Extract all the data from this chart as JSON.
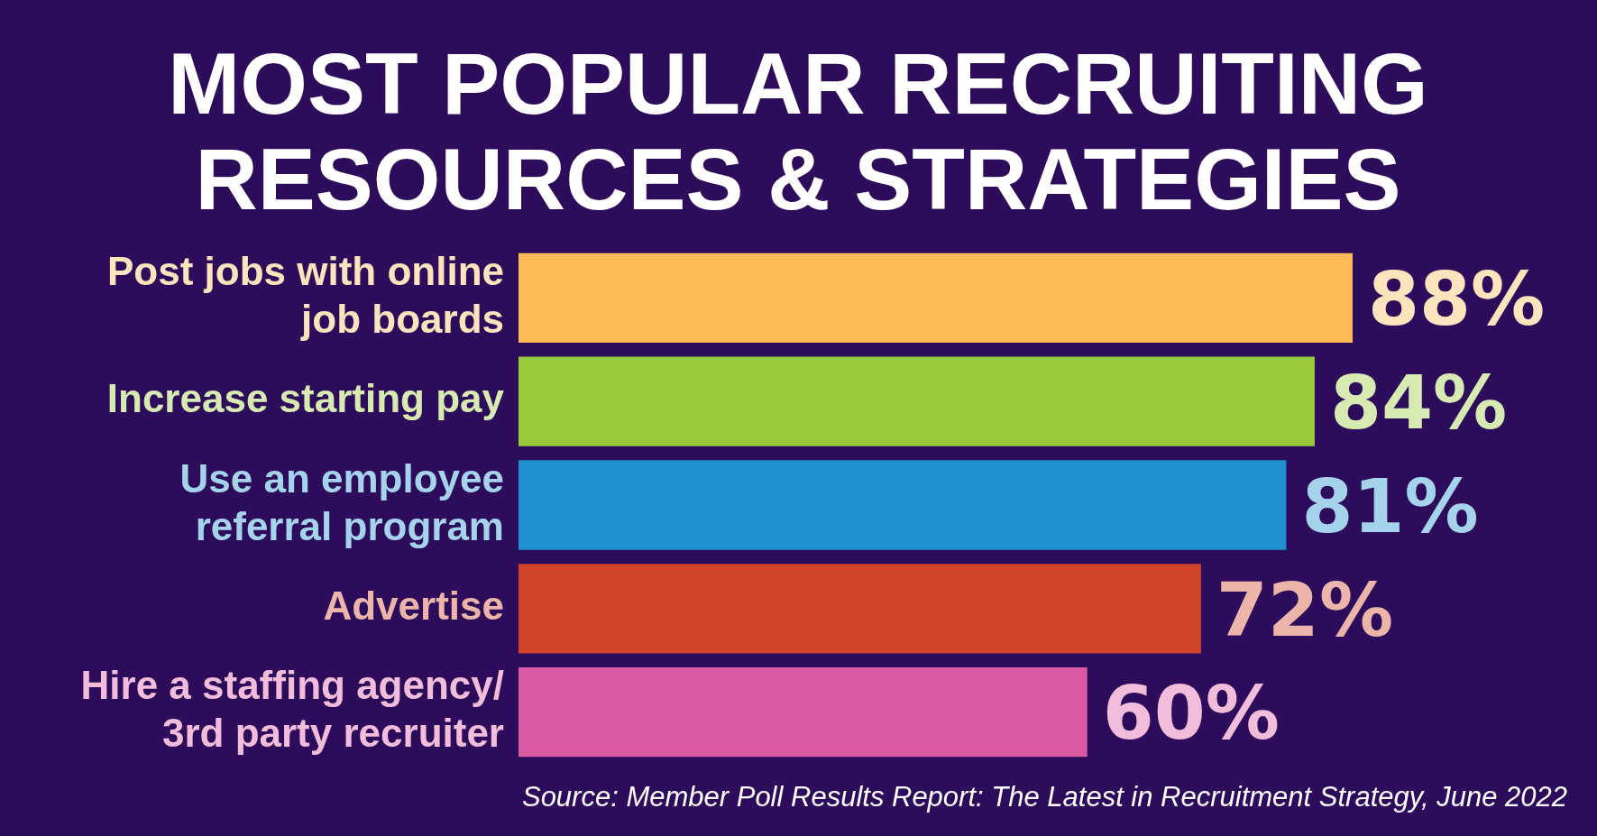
{
  "chart_data": {
    "type": "bar",
    "orientation": "horizontal",
    "title": "MOST POPULAR RECRUITING RESOURCES & STRATEGIES",
    "categories": [
      "Post jobs with online job boards",
      "Increase starting pay",
      "Use an employee referral program",
      "Advertise",
      "Hire a staffing agency/ 3rd party recruiter"
    ],
    "values": [
      88,
      84,
      81,
      72,
      60
    ],
    "colors": [
      "#fdbb58",
      "#99ca3c",
      "#2190d0",
      "#d24427",
      "#db5aa3"
    ],
    "value_labels": [
      "88%",
      "84%",
      "81%",
      "72%",
      "60%"
    ],
    "tick_labels": "y",
    "annotations": [
      "Source: Member Poll Results Report: The Latest in Recruitment Strategy, June 2022"
    ]
  }
}
